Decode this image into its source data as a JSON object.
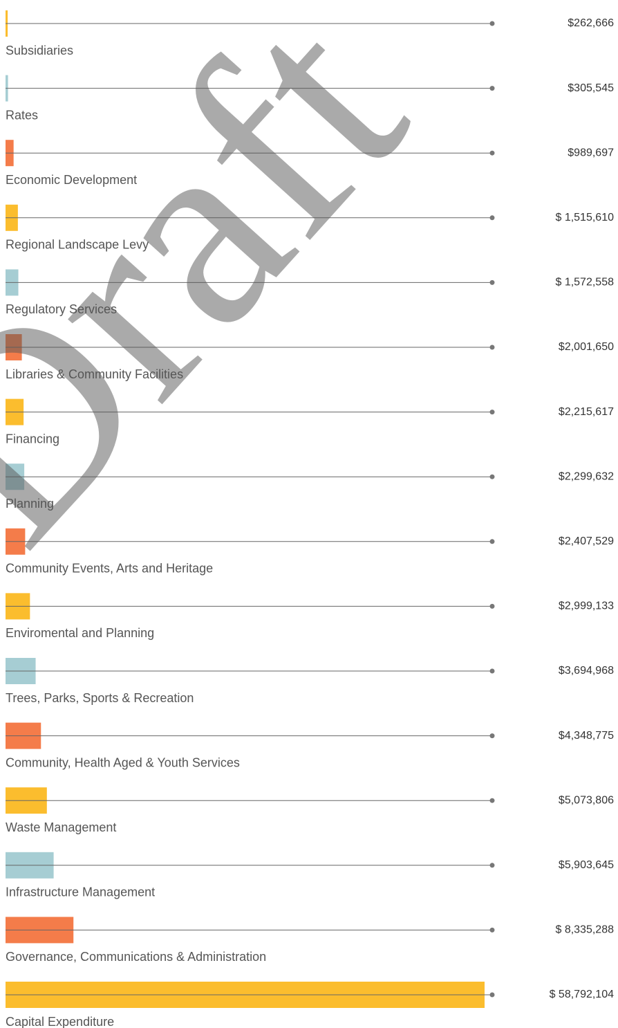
{
  "chart_data": {
    "type": "bar",
    "orientation": "horizontal",
    "watermark": "Draft",
    "categories": [
      "Subsidiaries",
      "Rates",
      "Economic Development",
      "Regional Landscape Levy",
      "Regulatory Services",
      "Libraries & Community Facilities",
      "Financing",
      "Planning",
      "Community Events, Arts and Heritage",
      "Enviromental and Planning",
      "Trees, Parks, Sports & Recreation",
      "Community, Health Aged & Youth Services",
      "Waste Management",
      "Infrastructure Management",
      "Governance, Communications & Administration",
      "Capital Expenditure"
    ],
    "values": [
      262666,
      305545,
      989697,
      1515610,
      1572558,
      2001650,
      2215617,
      2299632,
      2407529,
      2999133,
      3694968,
      4348775,
      5073806,
      5903645,
      8335288,
      58792104
    ],
    "value_labels": [
      "$262,666",
      "$305,545",
      "$989,697",
      "$ 1,515,610",
      "$ 1,572,558",
      "$2,001,650",
      "$2,215,617",
      "$2,299,632",
      "$2,407,529",
      "$2,999,133",
      "$3,694,968",
      "$4,348,775",
      "$5,073,806",
      "$5,903,645",
      "$ 8,335,288",
      "$ 58,792,104"
    ],
    "colors": [
      "#fbbd2e",
      "#a6cdd3",
      "#f47c4a",
      "#fbbd2e",
      "#a6cdd3",
      "#f47c4a",
      "#fbbd2e",
      "#a6cdd3",
      "#f47c4a",
      "#fbbd2e",
      "#a6cdd3",
      "#f47c4a",
      "#fbbd2e",
      "#a6cdd3",
      "#f47c4a",
      "#fbbd2e"
    ]
  }
}
